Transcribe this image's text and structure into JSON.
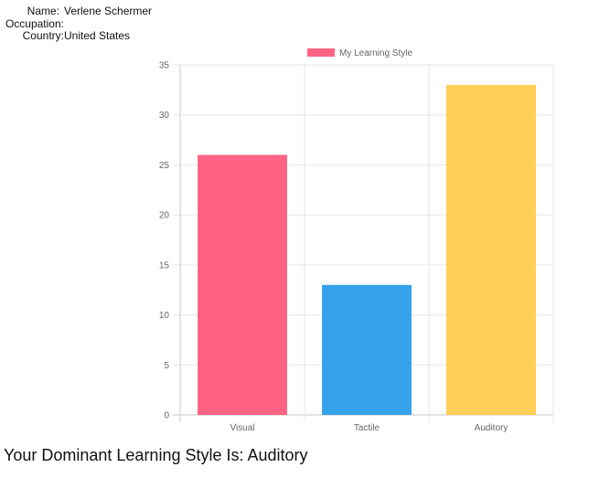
{
  "profile": {
    "name_label": "Name:",
    "name_value": "Verlene Schermer",
    "occupation_label": "Occupation:",
    "occupation_value": "",
    "country_label": "Country:",
    "country_value": "United States"
  },
  "chart_data": {
    "type": "bar",
    "categories": [
      "Visual",
      "Tactile",
      "Auditory"
    ],
    "series": [
      {
        "name": "My Learning Style",
        "values": [
          26,
          13,
          33
        ]
      }
    ],
    "bar_colors": [
      "#ff6384",
      "#36a2eb",
      "#ffce56"
    ],
    "legend_color": "#ff6384",
    "ylim": [
      0,
      35
    ],
    "y_ticks": [
      0,
      5,
      10,
      15,
      20,
      25,
      30,
      35
    ],
    "grid": true,
    "legend_position": "top"
  },
  "result": {
    "text": "Your Dominant Learning Style Is: Auditory"
  }
}
